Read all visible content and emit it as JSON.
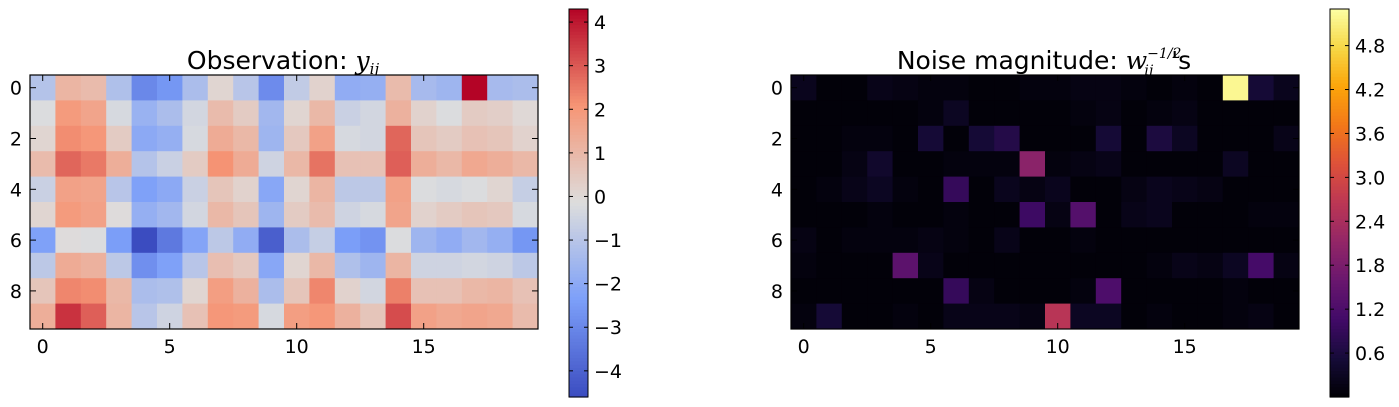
{
  "chart_data": [
    {
      "type": "heatmap",
      "title": "Observation: ",
      "title_math": "y",
      "title_math_sub": "ij",
      "rows": 10,
      "cols": 20,
      "xticks": [
        0,
        5,
        10,
        15
      ],
      "yticks": [
        0,
        2,
        4,
        6,
        8
      ],
      "colormap": "coolwarm",
      "vmin": -4.6,
      "vmax": 4.3,
      "colorbar_ticks": [
        4,
        3,
        2,
        1,
        0,
        -1,
        -2,
        -3,
        -4
      ],
      "colorbar_tick_labels": [
        "4",
        "3",
        "2",
        "1",
        "0",
        "−1",
        "−2",
        "−3",
        "−4"
      ],
      "values": [
        [
          -1.1,
          1.1,
          0.9,
          -1.2,
          -3.0,
          -2.6,
          -1.3,
          0.1,
          -1.0,
          -2.9,
          -0.8,
          0.2,
          -1.9,
          -1.8,
          0.9,
          -1.4,
          -1.6,
          4.3,
          -1.4,
          -1.3
        ],
        [
          -0.2,
          1.9,
          1.6,
          -0.3,
          -1.7,
          -1.3,
          -0.4,
          0.9,
          0.4,
          -1.5,
          0.1,
          1.0,
          -0.6,
          -0.4,
          1.2,
          0.2,
          -0.2,
          0.4,
          0.3,
          0.0
        ],
        [
          0.1,
          2.2,
          2.0,
          0.4,
          -2.0,
          -1.8,
          -0.3,
          1.4,
          1.0,
          -1.6,
          0.5,
          1.7,
          -0.3,
          -0.4,
          2.8,
          0.6,
          0.4,
          0.7,
          0.6,
          0.2
        ],
        [
          0.9,
          2.8,
          2.5,
          1.3,
          -1.1,
          -0.6,
          0.4,
          2.1,
          1.4,
          -0.5,
          1.0,
          2.6,
          0.7,
          0.7,
          2.9,
          1.3,
          1.0,
          1.5,
          1.3,
          1.0
        ],
        [
          -0.6,
          1.7,
          1.6,
          -1.0,
          -2.3,
          -2.0,
          -0.6,
          0.6,
          0.2,
          -2.1,
          0.1,
          1.1,
          -0.9,
          -0.9,
          1.7,
          -0.2,
          -0.3,
          -0.2,
          0.1,
          -0.7
        ],
        [
          0.1,
          1.9,
          1.7,
          -0.1,
          -1.8,
          -1.5,
          -0.4,
          1.0,
          0.6,
          -1.6,
          0.4,
          0.9,
          -0.5,
          -0.3,
          1.6,
          0.2,
          0.4,
          0.6,
          0.5,
          -0.3
        ],
        [
          -2.3,
          -0.1,
          -0.2,
          -2.4,
          -4.6,
          -3.4,
          -2.2,
          -0.9,
          -1.9,
          -4.1,
          -1.3,
          -0.7,
          -2.4,
          -2.7,
          -0.2,
          -1.6,
          -1.9,
          -1.5,
          -1.8,
          -2.6
        ],
        [
          -0.9,
          1.4,
          1.2,
          -0.9,
          -2.8,
          -2.3,
          -1.0,
          0.8,
          0.5,
          -2.1,
          0.1,
          1.0,
          -1.2,
          -1.6,
          1.1,
          -0.5,
          -0.5,
          -0.4,
          -0.5,
          -0.9
        ],
        [
          0.6,
          2.3,
          2.2,
          1.0,
          -1.3,
          -1.2,
          0.1,
          1.8,
          1.2,
          -1.3,
          0.6,
          2.3,
          0.2,
          -0.4,
          2.4,
          0.7,
          0.7,
          1.0,
          1.1,
          0.7
        ],
        [
          1.3,
          3.6,
          2.9,
          1.1,
          -1.0,
          -0.5,
          0.7,
          2.0,
          1.9,
          -0.3,
          1.8,
          2.0,
          1.2,
          0.6,
          3.2,
          1.7,
          1.5,
          1.6,
          1.5,
          0.9
        ]
      ]
    },
    {
      "type": "heatmap",
      "title": "Noise magnitude: ",
      "title_math": "w",
      "title_math_sub": "ij",
      "title_math_sup": "−1/2",
      "title_suffix": "'s",
      "rows": 10,
      "cols": 20,
      "xticks": [
        0,
        5,
        10,
        15
      ],
      "yticks": [
        0,
        2,
        4,
        6,
        8
      ],
      "colormap": "inferno",
      "vmin": 0.0,
      "vmax": 5.3,
      "colorbar_ticks": [
        4.8,
        4.2,
        3.6,
        3.0,
        2.4,
        1.8,
        1.2,
        0.6
      ],
      "colorbar_tick_labels": [
        "4.8",
        "4.2",
        "3.6",
        "3.0",
        "2.4",
        "1.8",
        "1.2",
        "0.6"
      ],
      "values": [
        [
          0.25,
          0.05,
          0.05,
          0.2,
          0.15,
          0.1,
          0.1,
          0.05,
          0.05,
          0.1,
          0.1,
          0.15,
          0.15,
          0.1,
          0.05,
          0.1,
          0.05,
          5.2,
          0.5,
          0.25
        ],
        [
          0.05,
          0.05,
          0.05,
          0.05,
          0.05,
          0.1,
          0.3,
          0.05,
          0.05,
          0.05,
          0.05,
          0.1,
          0.15,
          0.05,
          0.1,
          0.15,
          0.05,
          0.05,
          0.05,
          0.05
        ],
        [
          0.05,
          0.05,
          0.1,
          0.1,
          0.05,
          0.5,
          0.05,
          0.5,
          0.7,
          0.05,
          0.05,
          0.05,
          0.5,
          0.05,
          0.6,
          0.3,
          0.05,
          0.05,
          0.05,
          0.2
        ],
        [
          0.05,
          0.05,
          0.15,
          0.4,
          0.05,
          0.05,
          0.1,
          0.1,
          0.1,
          2.0,
          0.1,
          0.15,
          0.2,
          0.05,
          0.05,
          0.05,
          0.05,
          0.3,
          0.05,
          0.05
        ],
        [
          0.05,
          0.1,
          0.2,
          0.3,
          0.1,
          0.05,
          0.9,
          0.05,
          0.25,
          0.15,
          0.25,
          0.05,
          0.05,
          0.15,
          0.25,
          0.2,
          0.15,
          0.05,
          0.05,
          0.05
        ],
        [
          0.05,
          0.05,
          0.05,
          0.1,
          0.05,
          0.05,
          0.1,
          0.05,
          0.05,
          1.0,
          0.15,
          1.3,
          0.05,
          0.2,
          0.25,
          0.05,
          0.05,
          0.05,
          0.1,
          0.1
        ],
        [
          0.15,
          0.05,
          0.1,
          0.1,
          0.1,
          0.15,
          0.1,
          0.05,
          0.2,
          0.05,
          0.05,
          0.1,
          0.05,
          0.05,
          0.05,
          0.05,
          0.05,
          0.05,
          0.05,
          0.05
        ],
        [
          0.1,
          0.05,
          0.05,
          0.05,
          1.4,
          0.2,
          0.05,
          0.05,
          0.05,
          0.05,
          0.05,
          0.05,
          0.05,
          0.05,
          0.1,
          0.2,
          0.15,
          0.3,
          1.1,
          0.15
        ],
        [
          0.05,
          0.05,
          0.05,
          0.05,
          0.05,
          0.05,
          0.9,
          0.15,
          0.05,
          0.05,
          0.05,
          0.1,
          1.2,
          0.05,
          0.05,
          0.05,
          0.05,
          0.1,
          0.05,
          0.05
        ],
        [
          0.1,
          0.5,
          0.05,
          0.05,
          0.1,
          0.05,
          0.2,
          0.2,
          0.2,
          0.15,
          2.6,
          0.3,
          0.3,
          0.05,
          0.1,
          0.05,
          0.05,
          0.1,
          0.15,
          0.05
        ]
      ]
    }
  ]
}
